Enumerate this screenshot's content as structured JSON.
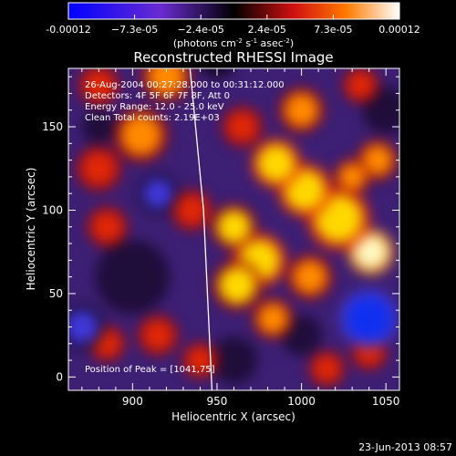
{
  "colorbar": {
    "ticks": [
      "-0.00012",
      "−7.3e-05",
      "−2.4e-05",
      "2.4e-05",
      "7.3e-05",
      "0.00012"
    ],
    "units_main": "(photons cm",
    "units_exp1": "-2",
    "units_s": " s",
    "units_exp2": "-1",
    "units_asec": " asec",
    "units_exp3": "-2",
    "units_close": ")"
  },
  "chart_data": {
    "type": "heatmap",
    "title": "Reconstructed RHESSI Image",
    "xlabel": "Heliocentric X (arcsec)",
    "ylabel": "Heliocentric Y (arcsec)",
    "xlim": [
      862,
      1058
    ],
    "ylim": [
      -8,
      185
    ],
    "xticks": [
      900,
      950,
      1000,
      1050
    ],
    "yticks": [
      0,
      50,
      100,
      150
    ],
    "color_range": [
      -0.00012,
      0.00012
    ],
    "annotations": [
      "26-Aug-2004 00:27:28.000 to 00:31:12.000",
      "Detectors: 4F 5F 6F 7F 8F, Att 0",
      "Energy Range: 12.0 - 25.0 keV",
      "Clean     Total counts: 2.19E+03"
    ],
    "peak_label": "Position of Peak = [1041,75]",
    "peak": [
      1041,
      75
    ],
    "limb_line": [
      [
        934,
        185
      ],
      [
        942,
        100
      ],
      [
        947,
        -8
      ]
    ],
    "blobs": [
      {
        "x": 1041,
        "y": 75,
        "r": 10,
        "v": 1.0
      },
      {
        "x": 1022,
        "y": 95,
        "r": 14,
        "v": 0.85
      },
      {
        "x": 1002,
        "y": 112,
        "r": 12,
        "v": 0.8
      },
      {
        "x": 985,
        "y": 128,
        "r": 11,
        "v": 0.8
      },
      {
        "x": 975,
        "y": 70,
        "r": 12,
        "v": 0.85
      },
      {
        "x": 962,
        "y": 55,
        "r": 11,
        "v": 0.75
      },
      {
        "x": 960,
        "y": 90,
        "r": 10,
        "v": 0.75
      },
      {
        "x": 1005,
        "y": 60,
        "r": 10,
        "v": 0.7
      },
      {
        "x": 1045,
        "y": 130,
        "r": 9,
        "v": 0.65
      },
      {
        "x": 1030,
        "y": 120,
        "r": 8,
        "v": 0.7
      },
      {
        "x": 983,
        "y": 35,
        "r": 9,
        "v": 0.6
      },
      {
        "x": 1000,
        "y": 160,
        "r": 10,
        "v": 0.6
      },
      {
        "x": 965,
        "y": 150,
        "r": 9,
        "v": 0.55
      },
      {
        "x": 935,
        "y": 100,
        "r": 9,
        "v": 0.45
      },
      {
        "x": 905,
        "y": 145,
        "r": 12,
        "v": 0.6
      },
      {
        "x": 880,
        "y": 125,
        "r": 10,
        "v": 0.55
      },
      {
        "x": 885,
        "y": 90,
        "r": 9,
        "v": 0.55
      },
      {
        "x": 920,
        "y": 180,
        "r": 11,
        "v": 0.6
      },
      {
        "x": 880,
        "y": 175,
        "r": 9,
        "v": 0.5
      },
      {
        "x": 915,
        "y": 25,
        "r": 9,
        "v": 0.55
      },
      {
        "x": 885,
        "y": 20,
        "r": 8,
        "v": 0.5
      },
      {
        "x": 940,
        "y": 10,
        "r": 8,
        "v": 0.55
      },
      {
        "x": 1040,
        "y": 15,
        "r": 8,
        "v": 0.5
      },
      {
        "x": 1015,
        "y": 5,
        "r": 8,
        "v": 0.45
      },
      {
        "x": 1035,
        "y": 175,
        "r": 8,
        "v": 0.5
      },
      {
        "x": 1040,
        "y": 35,
        "r": -13,
        "v": -0.95
      },
      {
        "x": 915,
        "y": 110,
        "r": -9,
        "v": -0.5
      },
      {
        "x": 870,
        "y": 30,
        "r": -10,
        "v": -0.6
      },
      {
        "x": 950,
        "y": 190,
        "r": -8,
        "v": -0.35
      }
    ]
  },
  "footer": {
    "timestamp": "23-Jun-2013 08:57"
  }
}
